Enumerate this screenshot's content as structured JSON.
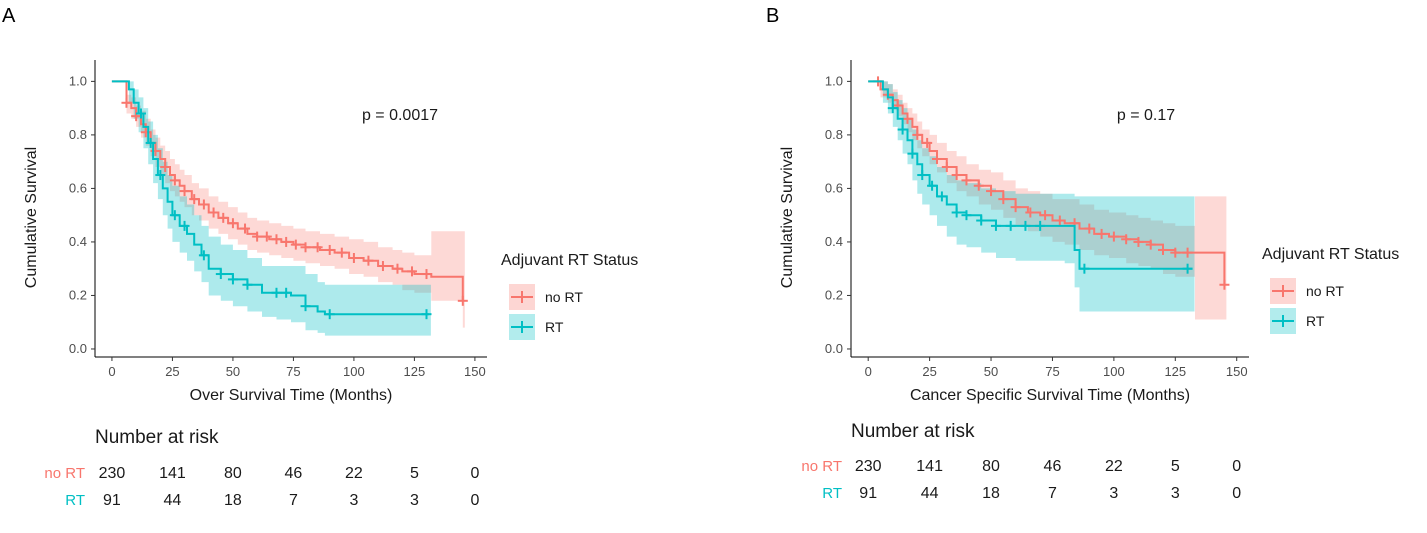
{
  "colors": {
    "no_rt": "#F8766D",
    "rt": "#00BFC4",
    "no_rt_band": "#F8766D",
    "rt_band": "#00BFC4"
  },
  "chart_data": [
    {
      "type": "line",
      "panel": "A",
      "subtype": "kaplan-meier",
      "pvalue": "p = 0.0017",
      "xlabel": "Over Survival Time (Months)",
      "ylabel": "Cumulative Survival",
      "xlim": [
        -7,
        155
      ],
      "ylim": [
        -0.03,
        1.05
      ],
      "xticks": [
        0,
        25,
        50,
        75,
        100,
        125,
        150
      ],
      "yticks": [
        "0.0",
        "0.2",
        "0.4",
        "0.6",
        "0.8",
        "1.0"
      ],
      "legend": {
        "title": "Adjuvant RT Status",
        "labels": [
          "no RT",
          "RT"
        ]
      },
      "series": [
        {
          "name": "no RT",
          "x": [
            0,
            6,
            8,
            10,
            12,
            14,
            16,
            18,
            20,
            22,
            24,
            26,
            28,
            30,
            33,
            36,
            40,
            44,
            48,
            52,
            56,
            60,
            65,
            70,
            75,
            80,
            86,
            92,
            98,
            104,
            110,
            116,
            120,
            125,
            132,
            145
          ],
          "y": [
            1.0,
            0.92,
            0.9,
            0.87,
            0.84,
            0.81,
            0.77,
            0.74,
            0.71,
            0.68,
            0.65,
            0.63,
            0.61,
            0.59,
            0.56,
            0.54,
            0.51,
            0.49,
            0.47,
            0.45,
            0.43,
            0.42,
            0.41,
            0.4,
            0.39,
            0.38,
            0.37,
            0.36,
            0.34,
            0.33,
            0.31,
            0.3,
            0.29,
            0.28,
            0.27,
            0.18
          ],
          "band_low": [
            1.0,
            0.88,
            0.86,
            0.83,
            0.79,
            0.76,
            0.72,
            0.68,
            0.65,
            0.62,
            0.59,
            0.57,
            0.55,
            0.53,
            0.5,
            0.48,
            0.45,
            0.43,
            0.41,
            0.39,
            0.37,
            0.36,
            0.35,
            0.34,
            0.33,
            0.32,
            0.31,
            0.3,
            0.28,
            0.27,
            0.25,
            0.24,
            0.22,
            0.21,
            0.18,
            0.08
          ],
          "band_high": [
            1.0,
            0.95,
            0.94,
            0.91,
            0.89,
            0.86,
            0.82,
            0.79,
            0.76,
            0.74,
            0.71,
            0.69,
            0.67,
            0.65,
            0.62,
            0.6,
            0.57,
            0.55,
            0.53,
            0.51,
            0.49,
            0.48,
            0.47,
            0.46,
            0.45,
            0.44,
            0.43,
            0.42,
            0.41,
            0.4,
            0.38,
            0.37,
            0.36,
            0.35,
            0.44,
            0.44
          ],
          "censor": [
            6,
            10,
            14,
            18,
            22,
            26,
            30,
            34,
            38,
            42,
            46,
            50,
            55,
            60,
            64,
            68,
            72,
            76,
            80,
            85,
            90,
            95,
            100,
            106,
            112,
            118,
            124,
            130,
            145
          ]
        },
        {
          "name": "RT",
          "x": [
            0,
            7,
            9,
            11,
            13,
            15,
            17,
            19,
            21,
            23,
            25,
            28,
            31,
            34,
            37,
            40,
            45,
            50,
            56,
            62,
            68,
            74,
            80,
            85,
            88,
            100,
            110,
            120,
            131
          ],
          "y": [
            1.0,
            0.97,
            0.92,
            0.88,
            0.83,
            0.77,
            0.71,
            0.65,
            0.6,
            0.55,
            0.5,
            0.46,
            0.43,
            0.39,
            0.35,
            0.3,
            0.28,
            0.26,
            0.24,
            0.21,
            0.21,
            0.2,
            0.16,
            0.14,
            0.13,
            0.13,
            0.13,
            0.13,
            0.13
          ],
          "band_low": [
            1.0,
            0.92,
            0.86,
            0.81,
            0.75,
            0.69,
            0.62,
            0.56,
            0.5,
            0.45,
            0.4,
            0.36,
            0.33,
            0.29,
            0.25,
            0.2,
            0.18,
            0.16,
            0.14,
            0.12,
            0.11,
            0.1,
            0.07,
            0.06,
            0.05,
            0.05,
            0.05,
            0.05,
            0.05
          ],
          "band_high": [
            1.0,
            1.0,
            0.97,
            0.94,
            0.9,
            0.85,
            0.8,
            0.75,
            0.7,
            0.65,
            0.61,
            0.57,
            0.54,
            0.5,
            0.46,
            0.42,
            0.39,
            0.37,
            0.34,
            0.31,
            0.31,
            0.31,
            0.28,
            0.25,
            0.24,
            0.24,
            0.24,
            0.24,
            0.24
          ],
          "censor": [
            12,
            16,
            20,
            26,
            30,
            38,
            45,
            50,
            56,
            68,
            72,
            80,
            90,
            130
          ]
        }
      ],
      "risk_table": {
        "title": "Number at risk",
        "times": [
          0,
          25,
          50,
          75,
          100,
          125,
          150
        ],
        "rows": [
          {
            "label": "no RT",
            "values": [
              "230",
              "141",
              "80",
              "46",
              "22",
              "5",
              "0"
            ]
          },
          {
            "label": "RT",
            "values": [
              "91",
              "44",
              "18",
              "7",
              "3",
              "3",
              "0"
            ]
          }
        ]
      }
    },
    {
      "type": "line",
      "panel": "B",
      "subtype": "kaplan-meier",
      "pvalue": "p = 0.17",
      "xlabel": "Cancer Specific Survival Time (Months)",
      "ylabel": "Cumulative Survival",
      "xlim": [
        -7,
        155
      ],
      "ylim": [
        -0.03,
        1.05
      ],
      "xticks": [
        0,
        25,
        50,
        75,
        100,
        125,
        150
      ],
      "yticks": [
        "0.0",
        "0.2",
        "0.4",
        "0.6",
        "0.8",
        "1.0"
      ],
      "legend": {
        "title": "Adjuvant RT Status",
        "labels": [
          "no RT",
          "RT"
        ]
      },
      "series": [
        {
          "name": "no RT",
          "x": [
            0,
            5,
            8,
            10,
            12,
            14,
            16,
            18,
            20,
            22,
            25,
            28,
            32,
            36,
            40,
            45,
            50,
            55,
            60,
            65,
            70,
            75,
            80,
            86,
            92,
            98,
            105,
            110,
            115,
            120,
            125,
            133,
            145
          ],
          "y": [
            1.0,
            0.97,
            0.95,
            0.93,
            0.91,
            0.88,
            0.86,
            0.83,
            0.8,
            0.77,
            0.74,
            0.71,
            0.68,
            0.65,
            0.63,
            0.61,
            0.59,
            0.56,
            0.53,
            0.51,
            0.5,
            0.48,
            0.47,
            0.45,
            0.43,
            0.42,
            0.41,
            0.4,
            0.39,
            0.37,
            0.36,
            0.36,
            0.24
          ],
          "band_low": [
            1.0,
            0.94,
            0.92,
            0.9,
            0.87,
            0.84,
            0.81,
            0.78,
            0.75,
            0.72,
            0.69,
            0.66,
            0.62,
            0.59,
            0.57,
            0.54,
            0.52,
            0.49,
            0.46,
            0.44,
            0.42,
            0.4,
            0.39,
            0.37,
            0.35,
            0.34,
            0.32,
            0.31,
            0.3,
            0.28,
            0.27,
            0.11,
            0.11
          ],
          "band_high": [
            1.0,
            1.0,
            0.99,
            0.97,
            0.95,
            0.92,
            0.9,
            0.88,
            0.85,
            0.82,
            0.8,
            0.77,
            0.74,
            0.72,
            0.69,
            0.67,
            0.66,
            0.63,
            0.6,
            0.59,
            0.58,
            0.56,
            0.56,
            0.54,
            0.52,
            0.51,
            0.5,
            0.49,
            0.48,
            0.47,
            0.46,
            0.57,
            0.57
          ],
          "censor": [
            4,
            8,
            12,
            16,
            20,
            24,
            28,
            32,
            36,
            40,
            45,
            50,
            55,
            60,
            66,
            72,
            78,
            84,
            90,
            95,
            100,
            105,
            110,
            115,
            120,
            125,
            130,
            145
          ]
        },
        {
          "name": "RT",
          "x": [
            0,
            6,
            8,
            10,
            12,
            14,
            16,
            18,
            20,
            22,
            25,
            28,
            32,
            36,
            40,
            46,
            52,
            60,
            70,
            80,
            84,
            86,
            100,
            115,
            128,
            132
          ],
          "y": [
            1.0,
            0.97,
            0.94,
            0.9,
            0.86,
            0.82,
            0.78,
            0.73,
            0.69,
            0.65,
            0.61,
            0.57,
            0.54,
            0.51,
            0.5,
            0.48,
            0.46,
            0.46,
            0.46,
            0.46,
            0.37,
            0.3,
            0.3,
            0.3,
            0.3,
            0.3
          ],
          "band_low": [
            1.0,
            0.92,
            0.88,
            0.83,
            0.78,
            0.73,
            0.69,
            0.63,
            0.58,
            0.54,
            0.5,
            0.46,
            0.42,
            0.39,
            0.38,
            0.36,
            0.34,
            0.33,
            0.33,
            0.32,
            0.23,
            0.14,
            0.14,
            0.14,
            0.14,
            0.14
          ],
          "band_high": [
            1.0,
            1.0,
            0.99,
            0.96,
            0.93,
            0.9,
            0.86,
            0.82,
            0.78,
            0.75,
            0.72,
            0.68,
            0.65,
            0.63,
            0.62,
            0.6,
            0.59,
            0.58,
            0.58,
            0.58,
            0.57,
            0.57,
            0.57,
            0.57,
            0.57,
            0.57
          ],
          "censor": [
            10,
            14,
            18,
            22,
            26,
            30,
            36,
            40,
            46,
            52,
            58,
            64,
            70,
            88,
            130
          ]
        }
      ],
      "risk_table": {
        "title": "Number at risk",
        "times": [
          0,
          25,
          50,
          75,
          100,
          125,
          150
        ],
        "rows": [
          {
            "label": "no RT",
            "values": [
              "230",
              "141",
              "80",
              "46",
              "22",
              "5",
              "0"
            ]
          },
          {
            "label": "RT",
            "values": [
              "91",
              "44",
              "18",
              "7",
              "3",
              "3",
              "0"
            ]
          }
        ]
      }
    }
  ]
}
